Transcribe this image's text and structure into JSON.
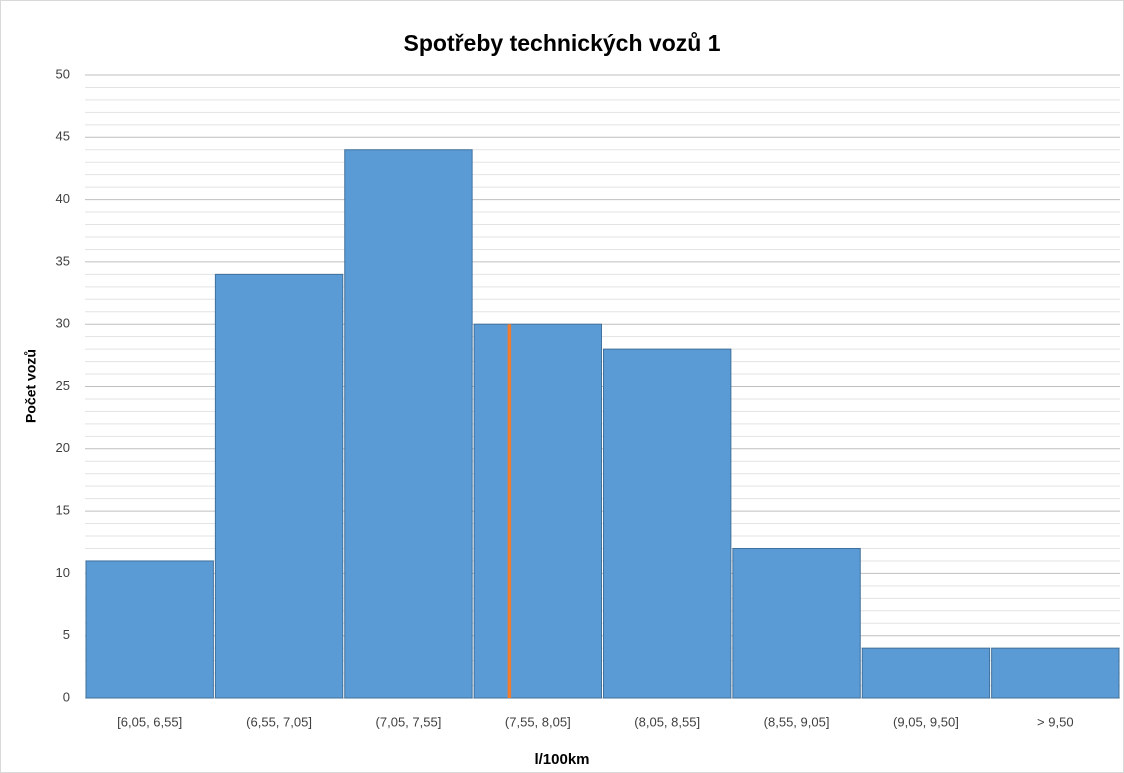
{
  "chart_data": {
    "type": "bar",
    "title": "Spotřeby technických vozů 1",
    "x_label": "l/100km",
    "y_label": "Počet vozů",
    "categories": [
      "[6,05, 6,55]",
      "(6,55, 7,05]",
      "(7,05, 7,55]",
      "(7,55, 8,05]",
      "(8,05, 8,55]",
      "(8,55, 9,05]",
      "(9,05, 9,50]",
      "> 9,50"
    ],
    "bin_edges": [
      6.05,
      6.55,
      7.05,
      7.55,
      8.05,
      8.55,
      9.05,
      9.5
    ],
    "values": [
      11,
      34,
      44,
      30,
      28,
      12,
      4,
      4
    ],
    "color": "#5b9bd5",
    "ylim": [
      0,
      50
    ],
    "yticks": [
      0,
      5,
      10,
      15,
      20,
      25,
      30,
      35,
      40,
      45,
      50
    ],
    "minor_yticks": [
      1,
      2,
      3,
      4,
      6,
      7,
      8,
      9,
      11,
      12,
      13,
      14,
      16,
      17,
      18,
      19,
      21,
      22,
      23,
      24,
      26,
      27,
      28,
      29,
      31,
      32,
      33,
      34,
      36,
      37,
      38,
      39,
      41,
      42,
      43,
      44,
      46,
      47,
      48,
      49
    ],
    "grid": true,
    "reference_line": {
      "x": 7.69,
      "value": 30,
      "color": "#ed7d31"
    }
  }
}
